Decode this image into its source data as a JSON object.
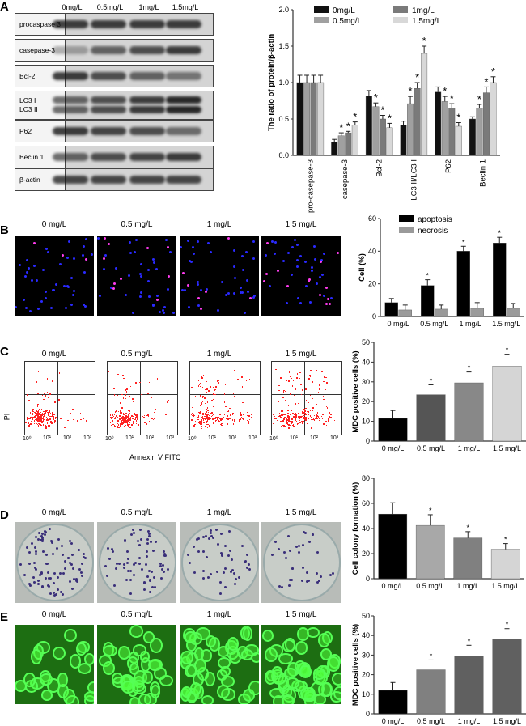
{
  "panels": {
    "A": "A",
    "B": "B",
    "C": "C",
    "D": "D",
    "E": "E"
  },
  "blot": {
    "columns": [
      "0mg/L",
      "0.5mg/L",
      "1mg/L",
      "1.5mg/L"
    ],
    "rows": [
      {
        "label": "procaspase 3",
        "intensity": [
          0.8,
          0.8,
          0.8,
          0.8
        ]
      },
      {
        "label": "casepase-3",
        "intensity": [
          0.3,
          0.6,
          0.7,
          0.8
        ]
      },
      {
        "label": "Bcl-2",
        "intensity": [
          0.8,
          0.7,
          0.6,
          0.5
        ]
      },
      {
        "label": "LC3 I\nLC3 II",
        "intensity": [
          0.6,
          0.7,
          0.8,
          0.9
        ]
      },
      {
        "label": "P62",
        "intensity": [
          0.8,
          0.75,
          0.7,
          0.55
        ]
      },
      {
        "label": "Beclin 1",
        "intensity": [
          0.6,
          0.7,
          0.75,
          0.8
        ]
      },
      {
        "label": "β-actin",
        "intensity": [
          0.75,
          0.75,
          0.75,
          0.75
        ]
      }
    ]
  },
  "images_B": {
    "labels": [
      "0 mg/L",
      "0.5 mg/L",
      "1 mg/L",
      "1.5 mg/L"
    ]
  },
  "flow_C": {
    "labels": [
      "0 mg/L",
      "0.5  mg/L",
      "1 mg/L",
      "1.5 mg/L"
    ],
    "ylabel": "PI",
    "xlabel": "Annexin V FITC",
    "ticks": [
      "10⁰",
      "10¹",
      "10²",
      "10³"
    ]
  },
  "images_D": {
    "labels": [
      "0 mg/L",
      "0.5 mg/L",
      "1 mg/L",
      "1.5 mg/L"
    ]
  },
  "images_E": {
    "labels": [
      "0 mg/L",
      "0.5 mg/L",
      "1 mg/L",
      "1.5 mg/L"
    ]
  },
  "chart_data": [
    {
      "id": "A",
      "type": "bar",
      "ylabel": "The ratio of protein/β-actin",
      "ylim": [
        0,
        2.0
      ],
      "yticks": [
        "0.0",
        "0.5",
        "1.0",
        "1.5",
        "2.0"
      ],
      "categories": [
        "pro-casepase-3",
        "casepase-3",
        "Bcl-2",
        "LC3 II/LC3 I",
        "P62",
        "Beclin 1"
      ],
      "legend_position": "top",
      "series": [
        {
          "name": "0mg/L",
          "color": "#111111",
          "values": [
            1.0,
            0.18,
            0.82,
            0.42,
            0.87,
            0.5
          ],
          "errors": [
            0.1,
            0.04,
            0.07,
            0.05,
            0.07,
            0.03
          ],
          "sig": [
            false,
            false,
            false,
            false,
            false,
            false
          ]
        },
        {
          "name": "0.5mg/L",
          "color": "#a0a0a0",
          "values": [
            1.0,
            0.27,
            0.67,
            0.71,
            0.74,
            0.65
          ],
          "errors": [
            0.1,
            0.04,
            0.05,
            0.1,
            0.07,
            0.05
          ],
          "sig": [
            false,
            true,
            true,
            true,
            true,
            true
          ]
        },
        {
          "name": "1mg/L",
          "color": "#7a7a7a",
          "values": [
            1.0,
            0.31,
            0.5,
            0.92,
            0.65,
            0.86
          ],
          "errors": [
            0.1,
            0.02,
            0.05,
            0.08,
            0.06,
            0.08
          ],
          "sig": [
            false,
            true,
            true,
            true,
            true,
            true
          ]
        },
        {
          "name": "1.5mg/L",
          "color": "#d8d8d8",
          "values": [
            1.0,
            0.42,
            0.38,
            1.4,
            0.4,
            1.0
          ],
          "errors": [
            0.1,
            0.04,
            0.06,
            0.1,
            0.05,
            0.08
          ],
          "sig": [
            false,
            true,
            true,
            true,
            true,
            true
          ]
        }
      ]
    },
    {
      "id": "B",
      "type": "bar",
      "ylabel": "Cell (%)",
      "ylim": [
        0,
        60
      ],
      "yticks": [
        "0",
        "20",
        "40",
        "60"
      ],
      "categories": [
        "0 mg/L",
        "0.5 mg/L",
        "1 mg/L",
        "1.5 mg/L"
      ],
      "legend_position": "top-left",
      "series": [
        {
          "name": "apoptosis",
          "color": "#000000",
          "values": [
            8.5,
            19,
            40,
            45
          ],
          "errors": [
            2.5,
            3.5,
            3,
            3.5
          ],
          "sig": [
            false,
            true,
            true,
            true
          ]
        },
        {
          "name": "necrosis",
          "color": "#9a9a9a",
          "values": [
            4,
            4.5,
            5,
            5
          ],
          "errors": [
            3,
            2.5,
            3.5,
            3
          ],
          "sig": [
            false,
            false,
            false,
            false
          ]
        }
      ]
    },
    {
      "id": "C",
      "type": "bar",
      "ylabel": "MDC positive cells (%)",
      "ylim": [
        0,
        50
      ],
      "yticks": [
        "0",
        "10",
        "20",
        "30",
        "40",
        "50"
      ],
      "categories": [
        "0 mg/L",
        "0.5 mg/L",
        "1 mg/L",
        "1.5 mg/L"
      ],
      "colors": [
        "#000000",
        "#555555",
        "#888888",
        "#d5d5d5"
      ],
      "values": [
        11.5,
        23.5,
        29.5,
        38
      ],
      "errors": [
        4,
        5,
        5.5,
        6
      ],
      "sig": [
        false,
        true,
        true,
        true
      ]
    },
    {
      "id": "D",
      "type": "bar",
      "ylabel": "Cell colony formation (%)",
      "ylim": [
        0,
        80
      ],
      "yticks": [
        "0",
        "20",
        "40",
        "60",
        "80"
      ],
      "categories": [
        "0 mg/L",
        "0.5 mg/L",
        "1 mg/L",
        "1.5 mg/L"
      ],
      "colors": [
        "#000000",
        "#a8a8a8",
        "#808080",
        "#d5d5d5"
      ],
      "values": [
        51.5,
        42.5,
        32.5,
        23.5
      ],
      "errors": [
        9,
        8.5,
        5,
        4.5
      ],
      "sig": [
        false,
        true,
        true,
        true
      ]
    },
    {
      "id": "E",
      "type": "bar",
      "ylabel": "MDC positive cells (%)",
      "ylim": [
        0,
        50
      ],
      "yticks": [
        "0",
        "10",
        "20",
        "30",
        "40",
        "50"
      ],
      "categories": [
        "0 mg/L",
        "0.5 mg/L",
        "1 mg/L",
        "1.5 mg/L"
      ],
      "colors": [
        "#000000",
        "#808080",
        "#606060",
        "#606060"
      ],
      "values": [
        12,
        22.5,
        29.5,
        38
      ],
      "errors": [
        4,
        5,
        5.5,
        5.5
      ],
      "sig": [
        false,
        true,
        true,
        true
      ]
    }
  ]
}
